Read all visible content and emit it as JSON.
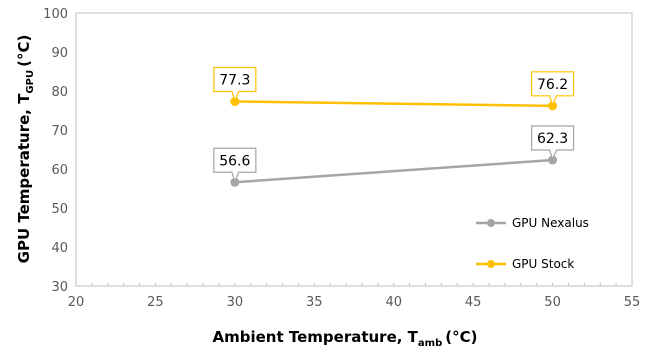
{
  "chart_data": {
    "type": "line",
    "x": [
      30,
      50
    ],
    "series": [
      {
        "name": "GPU Nexalus",
        "values": [
          56.6,
          62.3
        ],
        "color": "#a5a5a5",
        "labels": [
          "56.6",
          "62.3"
        ]
      },
      {
        "name": "GPU Stock",
        "values": [
          77.3,
          76.2
        ],
        "color": "#ffc000",
        "labels": [
          "77.3",
          "76.2"
        ]
      }
    ],
    "xlim": [
      20,
      55
    ],
    "ylim": [
      30,
      100
    ],
    "x_ticks": [
      "20",
      "25",
      "30",
      "35",
      "40",
      "45",
      "50",
      "55"
    ],
    "y_ticks": [
      "30",
      "40",
      "50",
      "60",
      "70",
      "80",
      "90",
      "100"
    ],
    "xlabel": {
      "main": "Ambient Temperature, T",
      "sub": "amb",
      "unit": "(°C)"
    },
    "ylabel": {
      "main": "GPU Temperature, T",
      "sub": "GPU",
      "unit": "(°C)"
    },
    "grid": false,
    "legend_position": "right"
  }
}
